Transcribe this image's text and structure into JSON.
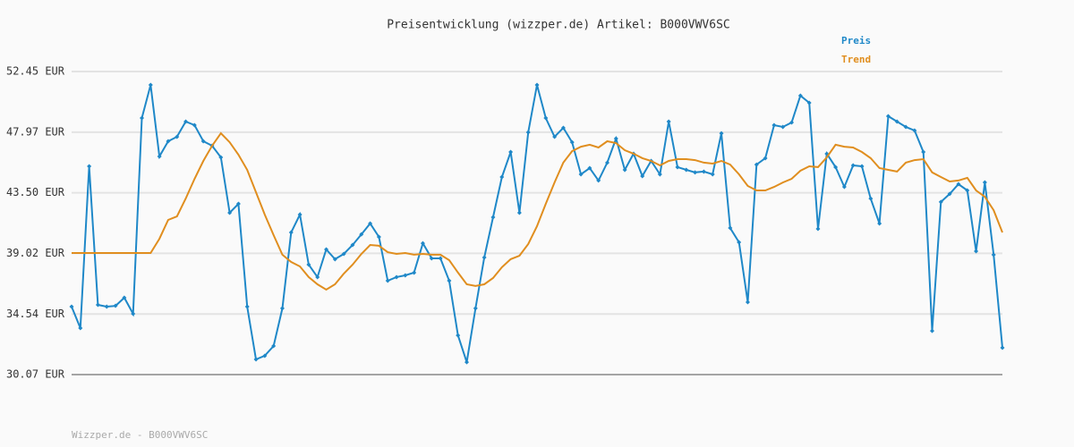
{
  "chart_data": {
    "type": "line",
    "title": "Preisentwicklung (wizzper.de) Artikel: B000VWV6SC",
    "footer": "Wizzper.de - B000VWV6SC",
    "xlim": [
      0,
      106
    ],
    "ylim": [
      30.07,
      52.45
    ],
    "yticks": [
      {
        "value": 30.07,
        "label": "30.07 EUR"
      },
      {
        "value": 34.54,
        "label": "34.54 EUR"
      },
      {
        "value": 39.02,
        "label": "39.02 EUR"
      },
      {
        "value": 43.5,
        "label": "43.50 EUR"
      },
      {
        "value": 47.97,
        "label": "47.97 EUR"
      },
      {
        "value": 52.45,
        "label": "52.45 EUR"
      }
    ],
    "grid": true,
    "legend": "top-right",
    "series": [
      {
        "name": "Preis",
        "color": "#1f88c8",
        "markers": true,
        "values": [
          35.09,
          33.5,
          45.45,
          35.22,
          35.09,
          35.15,
          35.75,
          34.56,
          49.02,
          51.46,
          46.18,
          47.3,
          47.63,
          48.75,
          48.49,
          47.3,
          46.97,
          46.11,
          42.02,
          42.68,
          35.09,
          31.19,
          31.46,
          32.18,
          34.96,
          40.57,
          41.89,
          38.19,
          37.27,
          39.31,
          38.59,
          38.98,
          39.64,
          40.43,
          41.23,
          40.24,
          37.0,
          37.27,
          37.4,
          37.6,
          39.77,
          38.65,
          38.65,
          37.0,
          32.97,
          30.99,
          34.96,
          38.72,
          41.69,
          44.66,
          46.51,
          42.02,
          47.96,
          51.46,
          49.02,
          47.63,
          48.29,
          47.23,
          44.86,
          45.32,
          44.4,
          45.72,
          47.5,
          45.19,
          46.38,
          44.73,
          45.85,
          44.86,
          48.75,
          45.39,
          45.19,
          45.0,
          45.06,
          44.86,
          47.89,
          40.9,
          39.84,
          35.42,
          45.58,
          46.05,
          48.49,
          48.36,
          48.69,
          50.67,
          50.14,
          40.83,
          46.38,
          45.39,
          43.93,
          45.52,
          45.45,
          43.07,
          41.23,
          49.15,
          48.75,
          48.36,
          48.09,
          46.51,
          33.3,
          42.82,
          43.41,
          44.13,
          43.67,
          39.18,
          44.26,
          38.92,
          32.05
        ]
      },
      {
        "name": "Trend",
        "color": "#e08e1f",
        "markers": false,
        "values": [
          39.05,
          39.05,
          39.05,
          39.05,
          39.05,
          39.05,
          39.05,
          39.05,
          39.05,
          39.05,
          40.1,
          41.49,
          41.75,
          43.07,
          44.53,
          45.85,
          46.97,
          47.89,
          47.23,
          46.31,
          45.19,
          43.54,
          41.89,
          40.37,
          38.92,
          38.39,
          38.06,
          37.27,
          36.74,
          36.34,
          36.74,
          37.53,
          38.19,
          38.98,
          39.64,
          39.58,
          39.11,
          38.98,
          39.05,
          38.92,
          38.98,
          38.92,
          38.92,
          38.52,
          37.6,
          36.74,
          36.61,
          36.74,
          37.2,
          38.0,
          38.59,
          38.85,
          39.71,
          41.03,
          42.68,
          44.26,
          45.72,
          46.57,
          46.9,
          47.04,
          46.84,
          47.3,
          47.17,
          46.64,
          46.38,
          46.05,
          45.85,
          45.52,
          45.85,
          45.98,
          45.98,
          45.91,
          45.72,
          45.65,
          45.85,
          45.58,
          44.86,
          44.0,
          43.67,
          43.67,
          43.93,
          44.26,
          44.53,
          45.12,
          45.45,
          45.39,
          46.11,
          47.04,
          46.9,
          46.84,
          46.51,
          46.05,
          45.32,
          45.19,
          45.06,
          45.72,
          45.91,
          45.98,
          45.0,
          44.66,
          44.33,
          44.4,
          44.6,
          43.67,
          43.2,
          42.21,
          40.57
        ]
      }
    ]
  }
}
